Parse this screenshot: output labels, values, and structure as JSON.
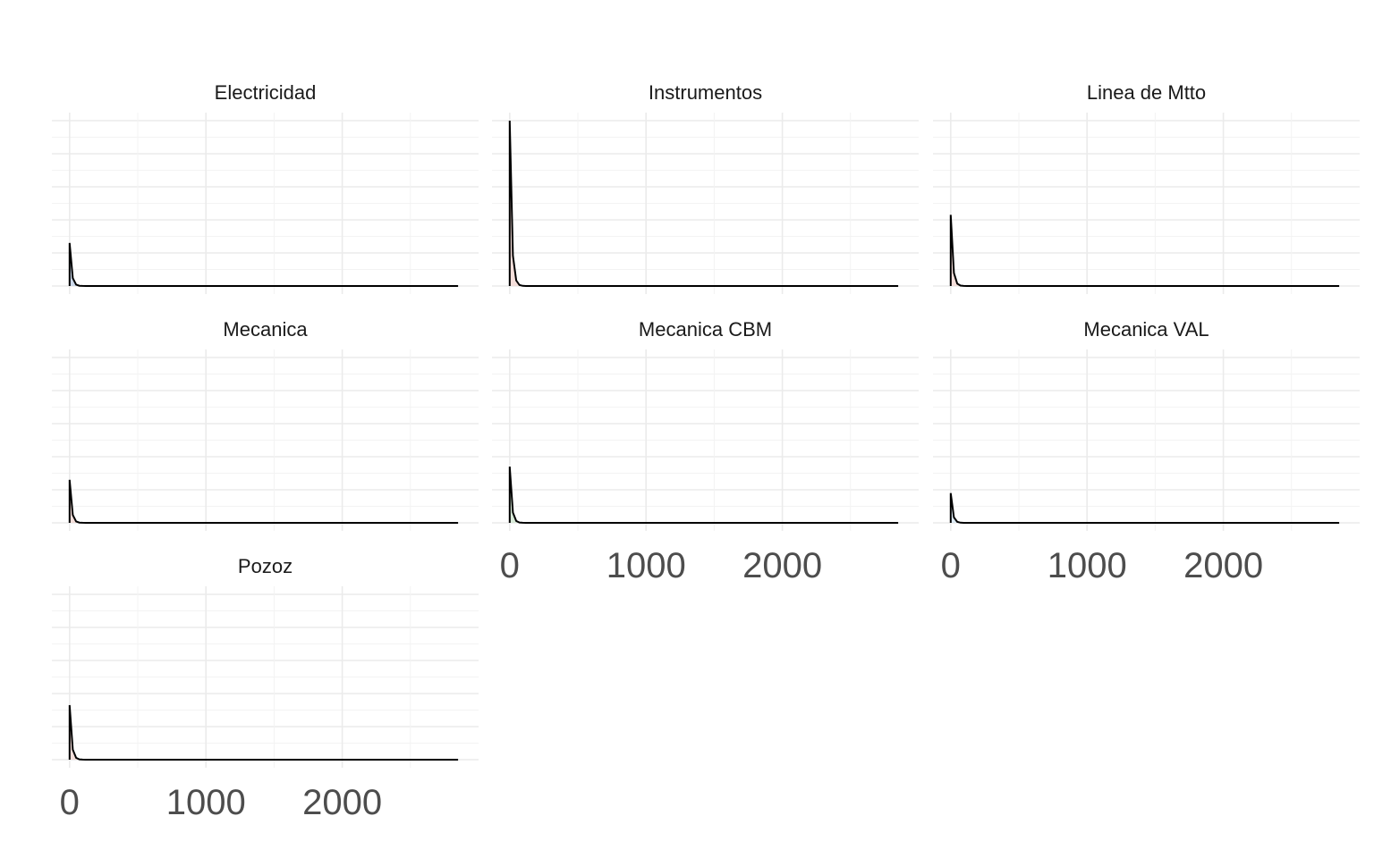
{
  "chart_data": {
    "type": "area",
    "facet_layout": "3 columns, 3 rows; x tick labels on bottom panel of each column",
    "x_range": [
      -130,
      3000
    ],
    "x_ticks": [
      0,
      1000,
      2000
    ],
    "x_minor_ticks": [
      500,
      1500,
      2500
    ],
    "x_data_max": 2850,
    "y_range": [
      0,
      1
    ],
    "y_grid_count": 6,
    "grid": true,
    "xlabel": "",
    "ylabel": "",
    "line_color": "#000000",
    "panels": [
      {
        "title": "Electricidad",
        "peak": 0.26,
        "fill": "#bfcfe6"
      },
      {
        "title": "Instrumentos",
        "peak": 1.0,
        "fill": "#f2d7d2"
      },
      {
        "title": "Linea de Mtto",
        "peak": 0.43,
        "fill": "#f2d7d2"
      },
      {
        "title": "Mecanica",
        "peak": 0.26,
        "fill": "#f2d7d2"
      },
      {
        "title": "Mecanica CBM",
        "peak": 0.34,
        "fill": "#cfe6cf"
      },
      {
        "title": "Mecanica VAL",
        "peak": 0.18,
        "fill": "#d6e6f2"
      },
      {
        "title": "Pozoz",
        "peak": 0.33,
        "fill": "#f2d7d2"
      }
    ]
  }
}
